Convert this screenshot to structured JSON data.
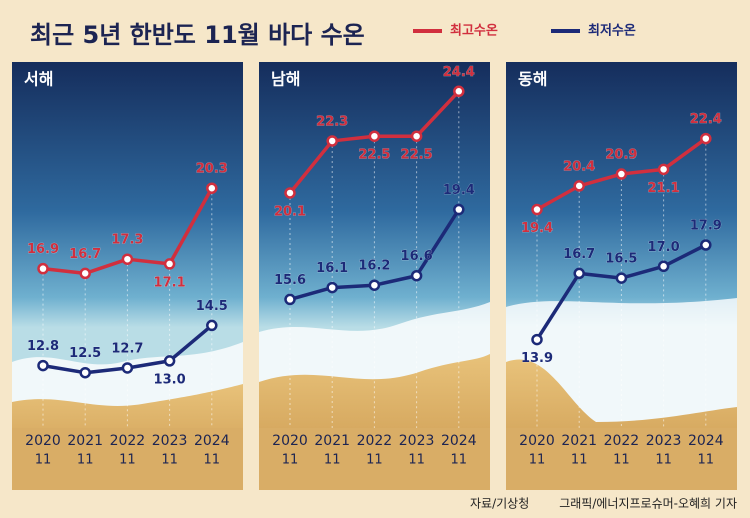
{
  "title": "최근 5년 한반도 11월 바다 수온",
  "source": "자료/기상청",
  "credit": "그래픽/에너지프로슈머-오혜희 기자",
  "chart_data": [
    {
      "type": "line",
      "title": "서해",
      "categories": [
        "2020",
        "2021",
        "2022",
        "2023",
        "2024"
      ],
      "category_sublabels": [
        "11",
        "11",
        "11",
        "11",
        "11"
      ],
      "ylim": [
        10.5,
        25.3
      ],
      "series": [
        {
          "name": "최고수온",
          "color": "#d12f3e",
          "values": [
            16.9,
            16.7,
            17.3,
            17.1,
            20.3
          ],
          "value_labels": [
            "16.9",
            "16.7",
            "17.3",
            "17.1",
            "20.3"
          ]
        },
        {
          "name": "최저수온",
          "color": "#1c2a78",
          "values": [
            12.8,
            12.5,
            12.7,
            13.0,
            14.5
          ],
          "value_labels": [
            "12.8",
            "12.5",
            "12.7",
            "13.0",
            "14.5"
          ]
        }
      ]
    },
    {
      "type": "line",
      "title": "남해",
      "categories": [
        "2020",
        "2021",
        "2022",
        "2023",
        "2024"
      ],
      "category_sublabels": [
        "11",
        "11",
        "11",
        "11",
        "11"
      ],
      "ylim": [
        10.5,
        25.3
      ],
      "series": [
        {
          "name": "최고수온",
          "color": "#d12f3e",
          "values": [
            20.1,
            22.3,
            22.5,
            22.5,
            24.4
          ],
          "value_labels": [
            "20.1",
            "22.3",
            "22.5",
            "22.5",
            "24.4"
          ]
        },
        {
          "name": "최저수온",
          "color": "#1c2a78",
          "values": [
            15.6,
            16.1,
            16.2,
            16.6,
            19.4
          ],
          "value_labels": [
            "15.6",
            "16.1",
            "16.2",
            "16.6",
            "19.4"
          ]
        }
      ]
    },
    {
      "type": "line",
      "title": "동해",
      "categories": [
        "2020",
        "2021",
        "2022",
        "2023",
        "2024"
      ],
      "category_sublabels": [
        "11",
        "11",
        "11",
        "11",
        "11"
      ],
      "ylim": [
        10.5,
        25.3
      ],
      "series": [
        {
          "name": "최고수온",
          "color": "#d12f3e",
          "values": [
            19.4,
            20.4,
            20.9,
            21.1,
            22.4
          ],
          "value_labels": [
            "19.4",
            "20.4",
            "20.9",
            "21.1",
            "22.4"
          ]
        },
        {
          "name": "최저수온",
          "color": "#1c2a78",
          "values": [
            13.9,
            16.7,
            16.5,
            17.0,
            17.9
          ],
          "value_labels": [
            "13.9",
            "16.7",
            "16.5",
            "17.0",
            "17.9"
          ]
        }
      ]
    }
  ]
}
